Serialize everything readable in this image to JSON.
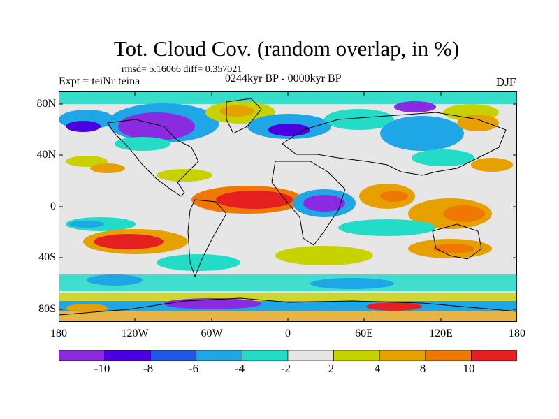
{
  "title": "Tot. Cloud Cov. (random overlap, in %)",
  "stats": "rmsd= 5.16066 diff= 0.357021",
  "experiment": "Expt = teiNr-teina",
  "period": "0244kyr BP - 0000kyr BP",
  "season": "DJF",
  "lat_labels": [
    "80N",
    "40N",
    "0",
    "40S",
    "80S"
  ],
  "lon_labels": [
    "180",
    "120W",
    "60W",
    "0",
    "60E",
    "120E",
    "180"
  ],
  "colorbar": {
    "colors": [
      "#8a2be2",
      "#4b00e0",
      "#1e56e6",
      "#1fa6e6",
      "#22dcc8",
      "#e6e6e6",
      "#c8d200",
      "#e6a000",
      "#f07800",
      "#e62020"
    ],
    "labels": [
      "-10",
      "-8",
      "-6",
      "-4",
      "-2",
      "2",
      "4",
      "8",
      "10"
    ]
  }
}
